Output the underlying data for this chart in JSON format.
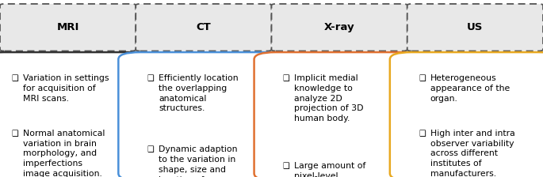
{
  "header_box_color": "#e8e8e8",
  "header_border_color": "#555555",
  "content_border_colors": [
    "#333333",
    "#4a90d9",
    "#e07030",
    "#e8a820"
  ],
  "content_bg_color": "#ffffff",
  "bullet": "❑",
  "columns": [
    {
      "title": "MRI",
      "items": [
        "Variation in settings\nfor acquisition of\nMRI scans.",
        "Normal anatomical\nvariation in brain\nmorphology, and\nimperfections\nimage acquisition."
      ]
    },
    {
      "title": "CT",
      "items": [
        "Efficiently location\nthe overlapping\nanatomical\nstructures.",
        "Dynamic adaption\nto the variation in\nshape, size and\nlocation of organs."
      ]
    },
    {
      "title": "X-ray",
      "items": [
        "Implicit medial\nknowledge to\nanalyze 2D\nprojection of 3D\nhuman body.",
        "Large amount of\npixel-level\nannotated data is\nrequired."
      ]
    },
    {
      "title": "US",
      "items": [
        "Heterogeneous\nappearance of the\norgan.",
        "High inter and intra\nobserver variability\nacross different\ninstitutes of\nmanufacturers."
      ]
    }
  ],
  "bg_color": "#ffffff",
  "font_size": 7.8,
  "title_font_size": 9.5,
  "fig_width": 6.85,
  "fig_height": 2.24,
  "dpi": 100
}
